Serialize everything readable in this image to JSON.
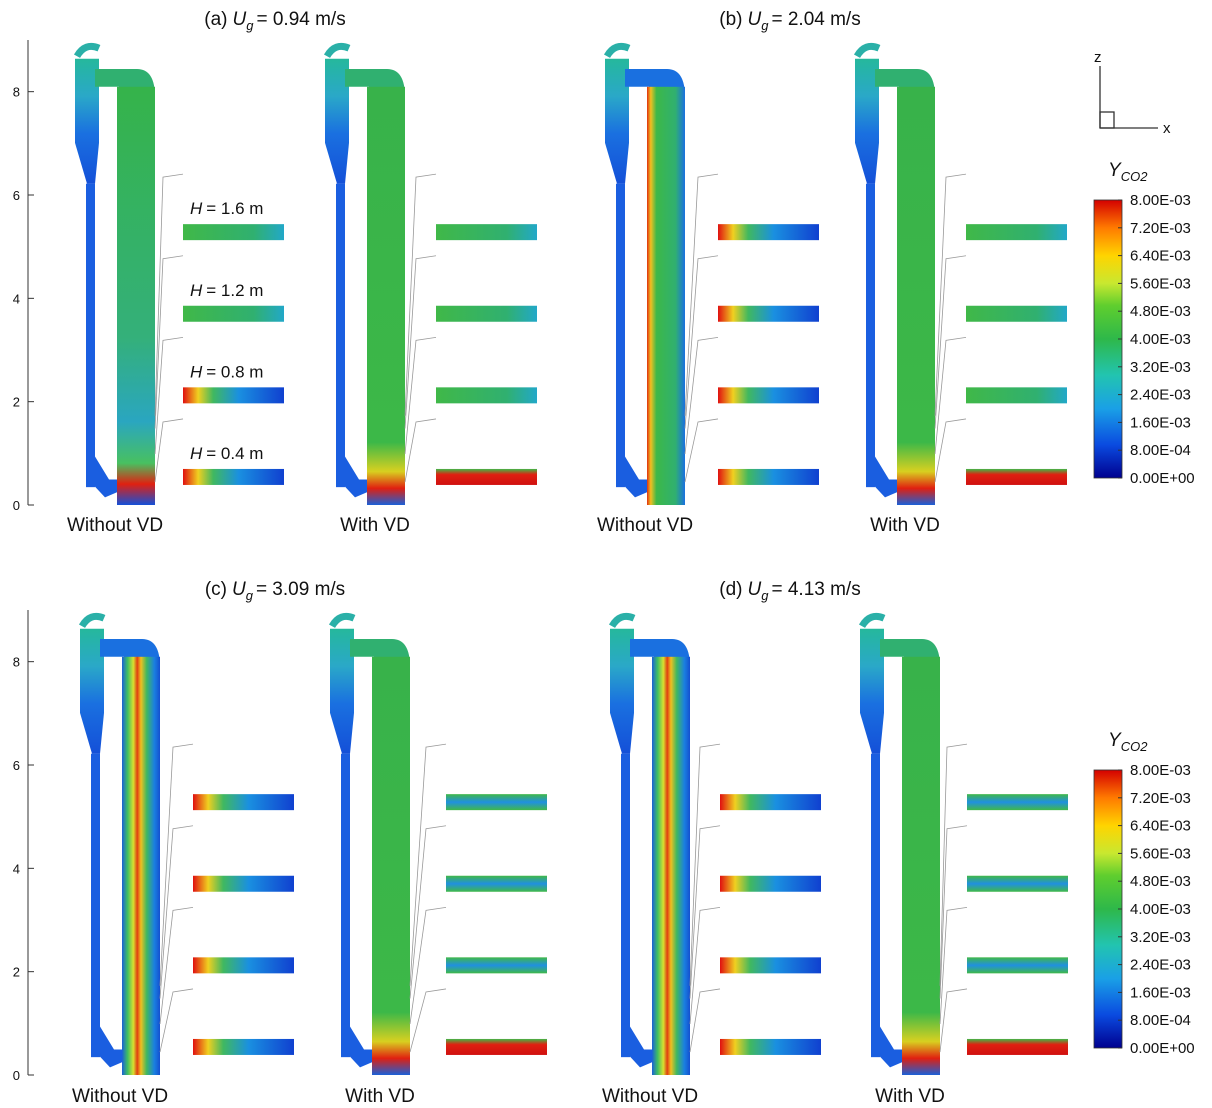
{
  "figure": {
    "y_axes": [
      {
        "ylim": [
          0,
          9
        ],
        "yticks": [
          0,
          2,
          4,
          6,
          8
        ]
      },
      {
        "ylim": [
          0,
          9
        ],
        "yticks": [
          0,
          2,
          4,
          6,
          8
        ]
      }
    ],
    "panels": [
      {
        "label": "(a)",
        "symbol": "U",
        "subscript": "g",
        "value": "= 0.94 m/s",
        "cases": [
          "Without VD",
          "With VD"
        ]
      },
      {
        "label": "(b)",
        "symbol": "U",
        "subscript": "g",
        "value": "= 2.04 m/s",
        "cases": [
          "Without VD",
          "With VD"
        ]
      },
      {
        "label": "(c)",
        "symbol": "U",
        "subscript": "g",
        "value": "= 3.09 m/s",
        "cases": [
          "Without VD",
          "With VD"
        ]
      },
      {
        "label": "(d)",
        "symbol": "U",
        "subscript": "g",
        "value": "= 4.13 m/s",
        "cases": [
          "Without VD",
          "With VD"
        ]
      }
    ],
    "slice_labels": [
      {
        "symbol": "H",
        "text": "= 1.6 m"
      },
      {
        "symbol": "H",
        "text": "= 1.2 m"
      },
      {
        "symbol": "H",
        "text": "= 0.8 m"
      },
      {
        "symbol": "H",
        "text": "= 0.4 m"
      }
    ],
    "colorbars": [
      {
        "symbol": "Y",
        "subscript": "CO2",
        "clim": [
          0,
          0.008
        ],
        "ticks": [
          {
            "value": 0.008,
            "label": "8.00E-03"
          },
          {
            "value": 0.0072,
            "label": "7.20E-03"
          },
          {
            "value": 0.0064,
            "label": "6.40E-03"
          },
          {
            "value": 0.0056,
            "label": "5.60E-03"
          },
          {
            "value": 0.0048,
            "label": "4.80E-03"
          },
          {
            "value": 0.004,
            "label": "4.00E-03"
          },
          {
            "value": 0.0032,
            "label": "3.20E-03"
          },
          {
            "value": 0.0024,
            "label": "2.40E-03"
          },
          {
            "value": 0.0016,
            "label": "1.60E-03"
          },
          {
            "value": 0.0008,
            "label": "8.00E-04"
          },
          {
            "value": 0,
            "label": "0.00E+00"
          }
        ]
      },
      {
        "symbol": "Y",
        "subscript": "CO2",
        "clim": [
          0,
          0.008
        ],
        "ticks": [
          {
            "value": 0.008,
            "label": "8.00E-03"
          },
          {
            "value": 0.0072,
            "label": "7.20E-03"
          },
          {
            "value": 0.0064,
            "label": "6.40E-03"
          },
          {
            "value": 0.0056,
            "label": "5.60E-03"
          },
          {
            "value": 0.0048,
            "label": "4.80E-03"
          },
          {
            "value": 0.004,
            "label": "4.00E-03"
          },
          {
            "value": 0.0032,
            "label": "3.20E-03"
          },
          {
            "value": 0.0024,
            "label": "2.40E-03"
          },
          {
            "value": 0.0016,
            "label": "1.60E-03"
          },
          {
            "value": 0.0008,
            "label": "8.00E-04"
          },
          {
            "value": 0,
            "label": "0.00E+00"
          }
        ]
      }
    ],
    "triad": {
      "z": "z",
      "x": "x"
    }
  }
}
